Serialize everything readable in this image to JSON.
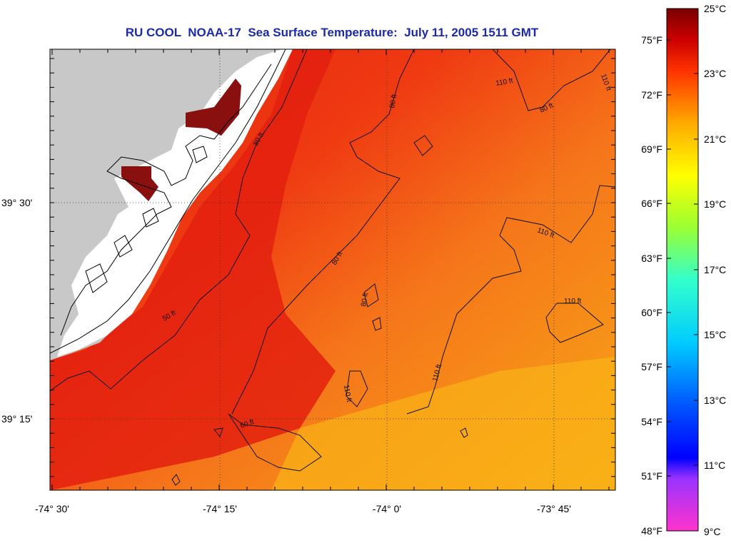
{
  "title": "RU COOL  NOAA-17  Sea Surface Temperature:  July 11, 2005 1511 GMT",
  "x_axis_labels": [
    "-74° 30'",
    "-74° 15'",
    "-74° 0'",
    "-73° 45'"
  ],
  "y_axis_labels": [
    "39° 30'",
    "39° 15'"
  ],
  "colorbar": {
    "celsius": [
      "25°C",
      "23°C",
      "21°C",
      "19°C",
      "17°C",
      "15°C",
      "13°C",
      "11°C",
      "9°C"
    ],
    "fahrenheit": [
      "75°F",
      "72°F",
      "69°F",
      "66°F",
      "63°F",
      "60°F",
      "57°F",
      "54°F",
      "51°F",
      "48°F"
    ],
    "range_c": [
      9,
      25
    ],
    "colors": [
      "#ff33cc",
      "#9900ff",
      "#0000ff",
      "#00aaff",
      "#00ffff",
      "#66ff66",
      "#ffff00",
      "#ffaa00",
      "#ff6600",
      "#ff0000",
      "#990000"
    ]
  },
  "contour_labels": [
    "80 ft",
    "110 ft",
    "50 ft",
    "60 ft"
  ],
  "colors": {
    "land": "#c8c8c8",
    "estuary": "#ffffff",
    "warm_water": "#f23a10",
    "offshore_water": "#f7861a",
    "cool_water": "#f8a316",
    "hot_spot": "#8a0f0f"
  }
}
